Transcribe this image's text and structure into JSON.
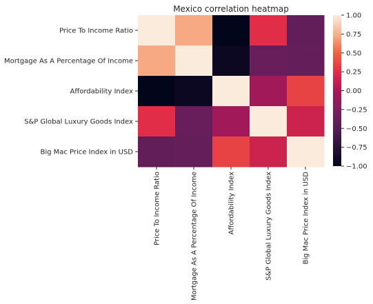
{
  "chart_data": {
    "type": "heatmap",
    "title": "Mexico correlation heatmap",
    "xlabel": "",
    "ylabel": "",
    "row_labels": [
      "Price To Income Ratio",
      "Mortgage As A Percentage Of Income",
      "Affordability Index",
      "S&P Global Luxury Goods Index",
      "Big Mac Price Index in USD"
    ],
    "col_labels": [
      "Price To Income Ratio",
      "Mortgage As A Percentage Of Income",
      "Affordability Index",
      "S&P Global Luxury Goods Index",
      "Big Mac Price Index in USD"
    ],
    "values": [
      [
        1.0,
        0.72,
        -1.0,
        0.25,
        -0.42
      ],
      [
        0.72,
        1.0,
        -0.93,
        -0.38,
        -0.4
      ],
      [
        -1.0,
        -0.93,
        1.0,
        -0.05,
        0.35
      ],
      [
        0.25,
        -0.38,
        -0.05,
        1.0,
        0.15
      ],
      [
        -0.42,
        -0.4,
        0.35,
        0.15,
        1.0
      ]
    ],
    "colorbar": {
      "range": [
        -1.0,
        1.0
      ],
      "ticks": [
        "1.00",
        "0.75",
        "0.50",
        "0.25",
        "0.00",
        "−0.25",
        "−0.50",
        "−0.75",
        "−1.00"
      ],
      "colormap": "rocket"
    },
    "grid": false
  }
}
